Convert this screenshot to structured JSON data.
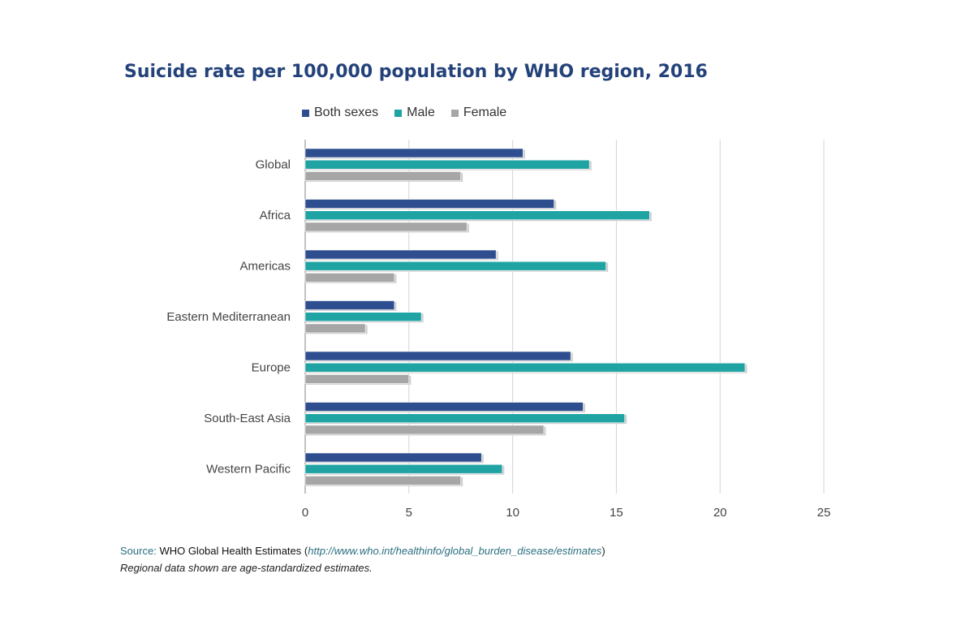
{
  "chart_data": {
    "type": "bar",
    "orientation": "horizontal",
    "title": "Suicide rate per 100,000 population by WHO region, 2016",
    "categories": [
      "Global",
      "Africa",
      "Americas",
      "Eastern Mediterranean",
      "Europe",
      "South-East Asia",
      "Western Pacific"
    ],
    "series": [
      {
        "name": "Both sexes",
        "color": "#2e4e8f",
        "values": [
          10.5,
          12.0,
          9.2,
          4.3,
          12.8,
          13.4,
          8.5
        ]
      },
      {
        "name": "Male",
        "color": "#1fa3a3",
        "values": [
          13.7,
          16.6,
          14.5,
          5.6,
          21.2,
          15.4,
          9.5
        ]
      },
      {
        "name": "Female",
        "color": "#a6a6a6",
        "values": [
          7.5,
          7.8,
          4.3,
          2.9,
          5.0,
          11.5,
          7.5
        ]
      }
    ],
    "xlim": [
      0,
      25
    ],
    "xticks": [
      0,
      5,
      10,
      15,
      20,
      25
    ],
    "legend_position": "top",
    "grid": true
  },
  "footer": {
    "source_label": "Source:",
    "source_org": "WHO Global Health Estimates",
    "source_url": "http://www.who.int/healthinfo/global_burden_disease/estimates",
    "note": "Regional data shown are age-standardized estimates."
  }
}
